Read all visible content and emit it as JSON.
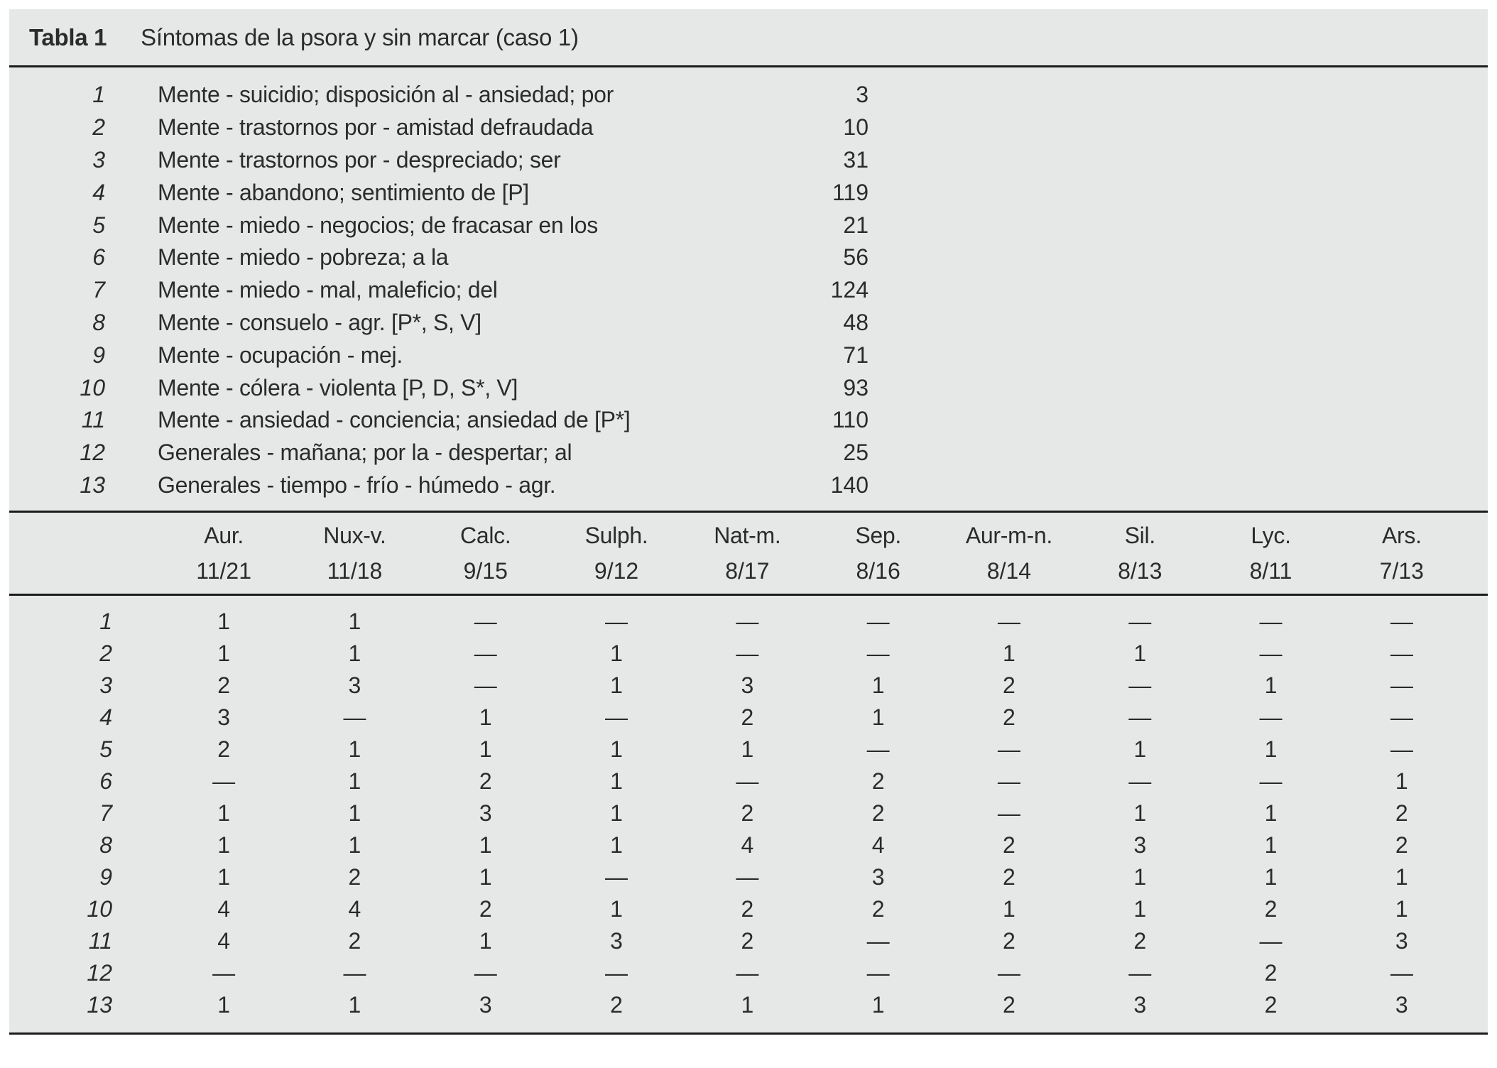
{
  "title": {
    "label": "Tabla 1",
    "caption": "Síntomas de la psora y sin marcar (caso 1)"
  },
  "symptoms": [
    {
      "num": "1",
      "text": "Mente - suicidio; disposición al - ansiedad; por",
      "count": "3"
    },
    {
      "num": "2",
      "text": "Mente - trastornos por - amistad defraudada",
      "count": "10"
    },
    {
      "num": "3",
      "text": "Mente - trastornos por - despreciado; ser",
      "count": "31"
    },
    {
      "num": "4",
      "text": "Mente - abandono; sentimiento de [P]",
      "count": "119"
    },
    {
      "num": "5",
      "text": "Mente - miedo - negocios; de fracasar en los",
      "count": "21"
    },
    {
      "num": "6",
      "text": "Mente - miedo - pobreza; a la",
      "count": "56"
    },
    {
      "num": "7",
      "text": "Mente - miedo - mal, maleficio; del",
      "count": "124"
    },
    {
      "num": "8",
      "text": "Mente - consuelo - agr. [P*, S, V]",
      "count": "48"
    },
    {
      "num": "9",
      "text": "Mente - ocupación - mej.",
      "count": "71"
    },
    {
      "num": "10",
      "text": "Mente - cólera - violenta [P, D, S*, V]",
      "count": "93"
    },
    {
      "num": "11",
      "text": "Mente - ansiedad - conciencia; ansiedad de [P*]",
      "count": "110"
    },
    {
      "num": "12",
      "text": "Generales - mañana; por la - despertar; al",
      "count": "25"
    },
    {
      "num": "13",
      "text": "Generales - tiempo - frío - húmedo - agr.",
      "count": "140"
    }
  ],
  "remedies": [
    {
      "name": "Aur.",
      "ratio": "11/21"
    },
    {
      "name": "Nux-v.",
      "ratio": "11/18"
    },
    {
      "name": "Calc.",
      "ratio": "9/15"
    },
    {
      "name": "Sulph.",
      "ratio": "9/12"
    },
    {
      "name": "Nat-m.",
      "ratio": "8/17"
    },
    {
      "name": "Sep.",
      "ratio": "8/16"
    },
    {
      "name": "Aur-m-n.",
      "ratio": "8/14"
    },
    {
      "name": "Sil.",
      "ratio": "8/13"
    },
    {
      "name": "Lyc.",
      "ratio": "8/11"
    },
    {
      "name": "Ars.",
      "ratio": "7/13"
    }
  ],
  "matrix": [
    {
      "num": "1",
      "values": [
        "1",
        "1",
        "—",
        "—",
        "—",
        "—",
        "—",
        "—",
        "—",
        "—"
      ]
    },
    {
      "num": "2",
      "values": [
        "1",
        "1",
        "—",
        "1",
        "—",
        "—",
        "1",
        "1",
        "—",
        "—"
      ]
    },
    {
      "num": "3",
      "values": [
        "2",
        "3",
        "—",
        "1",
        "3",
        "1",
        "2",
        "—",
        "1",
        "—"
      ]
    },
    {
      "num": "4",
      "values": [
        "3",
        "—",
        "1",
        "—",
        "2",
        "1",
        "2",
        "—",
        "—",
        "—"
      ]
    },
    {
      "num": "5",
      "values": [
        "2",
        "1",
        "1",
        "1",
        "1",
        "—",
        "—",
        "1",
        "1",
        "—"
      ]
    },
    {
      "num": "6",
      "values": [
        "—",
        "1",
        "2",
        "1",
        "—",
        "2",
        "—",
        "—",
        "—",
        "1"
      ]
    },
    {
      "num": "7",
      "values": [
        "1",
        "1",
        "3",
        "1",
        "2",
        "2",
        "—",
        "1",
        "1",
        "2"
      ]
    },
    {
      "num": "8",
      "values": [
        "1",
        "1",
        "1",
        "1",
        "4",
        "4",
        "2",
        "3",
        "1",
        "2"
      ]
    },
    {
      "num": "9",
      "values": [
        "1",
        "2",
        "1",
        "—",
        "—",
        "3",
        "2",
        "1",
        "1",
        "1"
      ]
    },
    {
      "num": "10",
      "values": [
        "4",
        "4",
        "2",
        "1",
        "2",
        "2",
        "1",
        "1",
        "2",
        "1"
      ]
    },
    {
      "num": "11",
      "values": [
        "4",
        "2",
        "1",
        "3",
        "2",
        "—",
        "2",
        "2",
        "—",
        "3"
      ]
    },
    {
      "num": "12",
      "values": [
        "—",
        "—",
        "—",
        "—",
        "—",
        "—",
        "—",
        "—",
        "2",
        "—"
      ]
    },
    {
      "num": "13",
      "values": [
        "1",
        "1",
        "3",
        "2",
        "1",
        "1",
        "2",
        "3",
        "2",
        "3"
      ]
    }
  ],
  "colors": {
    "card_bg": "#e6e8e8",
    "text": "#2b2b2b",
    "rule": "#1b1b1b"
  }
}
